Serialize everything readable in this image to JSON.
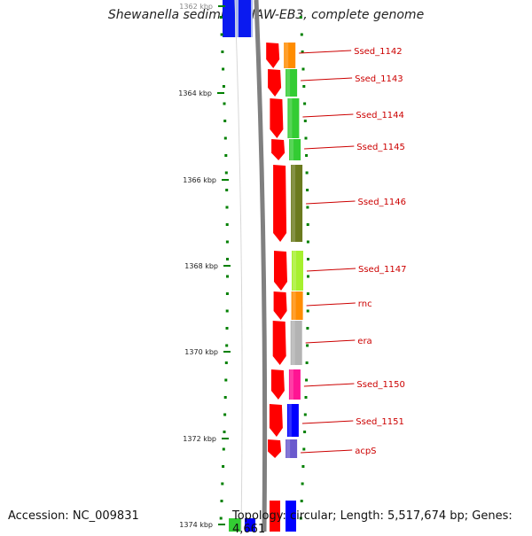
{
  "title": "Shewanella sediminis HAW-EB3, complete genome",
  "accession": "Accession: NC_009831",
  "summary": "Topology: circular; Length: 5,517,674 bp; Genes: 4,661",
  "ruler_labels": [
    "1362 kbp",
    "1364 kbp",
    "1366 kbp",
    "1368 kbp",
    "1370 kbp",
    "1372 kbp",
    "1374 kbp"
  ],
  "genes": [
    {
      "label": "Ssed_1142",
      "color": "#ff8c00"
    },
    {
      "label": "Ssed_1143",
      "color": "#33cc33"
    },
    {
      "label": "Ssed_1144",
      "color": "#33cc33"
    },
    {
      "label": "Ssed_1145",
      "color": "#33cc33"
    },
    {
      "label": "Ssed_1146",
      "color": "#6b7a1e"
    },
    {
      "label": "Ssed_1147",
      "color": "#a6f02e"
    },
    {
      "label": "rnc",
      "color": "#ff8c00"
    },
    {
      "label": "era",
      "color": "#b3b3b3"
    },
    {
      "label": "Ssed_1150",
      "color": "#ff1493"
    },
    {
      "label": "Ssed_1151",
      "color": "#0000ff"
    },
    {
      "label": "acpS",
      "color": "#6a5acd"
    }
  ],
  "colors": {
    "cds_strand": "#ff0000",
    "label_text": "#cc0000",
    "tick": "#008000",
    "backbone": "#808080",
    "other_strand": "#0000ff"
  }
}
